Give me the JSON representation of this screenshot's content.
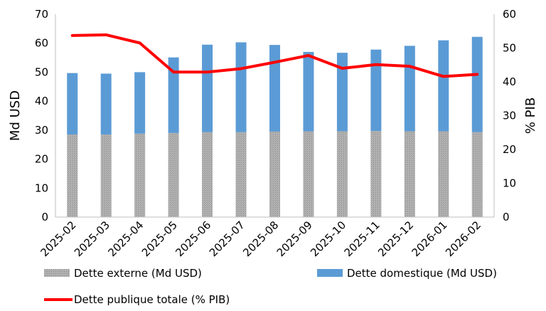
{
  "chart_data": {
    "type": "bar",
    "stacked": true,
    "categories": [
      "2025-02",
      "2025-03",
      "2025-04",
      "2025-05",
      "2025-06",
      "2025-07",
      "2025-08",
      "2025-09",
      "2025-10",
      "2025-11",
      "2025-12",
      "2026-01",
      "2026-02"
    ],
    "series": [
      {
        "name": "Dette externe (Md USD)",
        "type": "bar",
        "axis": "left",
        "color": "#a6a6a6",
        "values": [
          28.5,
          28.5,
          28.8,
          29.0,
          29.3,
          29.3,
          29.5,
          29.6,
          29.6,
          29.7,
          29.6,
          29.6,
          29.3
        ]
      },
      {
        "name": "Dette domestique (Md USD)",
        "type": "bar",
        "axis": "left",
        "color": "#5b9bd5",
        "values": [
          21.2,
          21.0,
          21.2,
          26.1,
          30.2,
          31.0,
          29.9,
          27.4,
          27.1,
          28.1,
          29.5,
          31.4,
          32.9
        ]
      },
      {
        "name": "Dette publique totale (% PIB)",
        "type": "line",
        "axis": "right",
        "color": "#ff0000",
        "values": [
          53.7,
          53.9,
          51.5,
          42.9,
          42.9,
          43.9,
          45.8,
          47.8,
          44.0,
          45.1,
          44.6,
          41.6,
          42.2
        ]
      }
    ],
    "yleft": {
      "label": "Md USD",
      "min": 0,
      "max": 70,
      "ticks": [
        "0",
        "10",
        "20",
        "30",
        "40",
        "50",
        "60",
        "70"
      ]
    },
    "yright": {
      "label": "% PIB",
      "min": 0,
      "max": 60,
      "ticks": [
        "0",
        "10",
        "20",
        "30",
        "40",
        "50",
        "60"
      ]
    },
    "grid": false,
    "legend": "bottom"
  }
}
